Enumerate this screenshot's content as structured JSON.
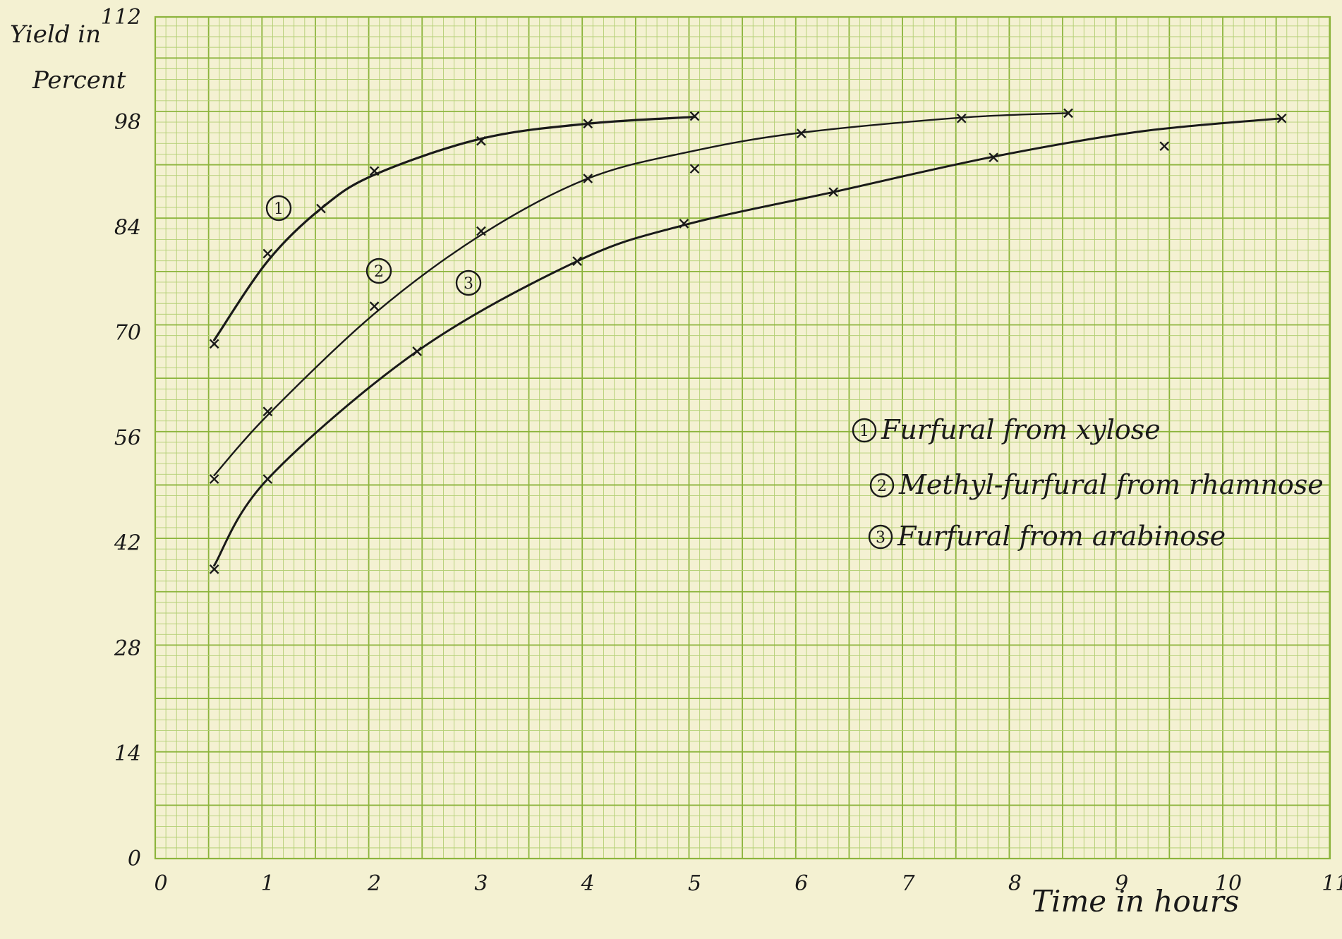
{
  "chart_data": {
    "type": "line",
    "title": "",
    "ylabel_line1": "Yield in",
    "ylabel_line2": "Percent",
    "xlabel": "Time in hours",
    "xlim": [
      0,
      11
    ],
    "ylim": [
      0,
      112
    ],
    "xticks": [
      "0",
      "1",
      "2",
      "3",
      "4",
      "5",
      "6",
      "7",
      "8",
      "9",
      "10",
      "11"
    ],
    "yticks": [
      "0",
      "14",
      "28",
      "42",
      "56",
      "70",
      "84",
      "98",
      "112"
    ],
    "grid": true,
    "legend_position": "right",
    "series": [
      {
        "marker_label": "1",
        "name": "Furfural from xylose",
        "points": [
          [
            0.5,
            68.5
          ],
          [
            1.0,
            80.5
          ],
          [
            1.5,
            86.5
          ],
          [
            2.0,
            91.5
          ],
          [
            3.0,
            95.5
          ],
          [
            4.0,
            97.8
          ],
          [
            5.0,
            98.8
          ]
        ],
        "curve": [
          [
            0.5,
            69
          ],
          [
            1.0,
            79.5
          ],
          [
            1.5,
            86.5
          ],
          [
            2.0,
            91
          ],
          [
            3.0,
            95.8
          ],
          [
            4.0,
            97.8
          ],
          [
            5.0,
            98.7
          ]
        ]
      },
      {
        "marker_label": "2",
        "name": "Methyl-furfural from rhamnose",
        "points": [
          [
            0.5,
            50.5
          ],
          [
            1.0,
            59.5
          ],
          [
            2.0,
            73.5
          ],
          [
            3.0,
            83.5
          ],
          [
            4.0,
            90.5
          ],
          [
            5.0,
            91.8
          ],
          [
            6.0,
            96.5
          ],
          [
            7.5,
            98.5
          ],
          [
            8.5,
            99.2
          ]
        ],
        "curve": [
          [
            0.5,
            51
          ],
          [
            1.0,
            59
          ],
          [
            2.0,
            72.5
          ],
          [
            3.0,
            83
          ],
          [
            4.0,
            90.5
          ],
          [
            5.0,
            94.2
          ],
          [
            6.0,
            96.6
          ],
          [
            7.5,
            98.6
          ],
          [
            8.5,
            99.2
          ]
        ]
      },
      {
        "marker_label": "3",
        "name": "Furfural from arabinose",
        "points": [
          [
            0.5,
            38.5
          ],
          [
            1.0,
            50.5
          ],
          [
            2.4,
            67.5
          ],
          [
            3.9,
            79.5
          ],
          [
            4.9,
            84.5
          ],
          [
            6.3,
            88.7
          ],
          [
            7.8,
            93.3
          ],
          [
            9.4,
            94.8
          ],
          [
            10.5,
            98.5
          ]
        ],
        "curve": [
          [
            0.5,
            39
          ],
          [
            1.0,
            50.5
          ],
          [
            2.4,
            67.5
          ],
          [
            3.9,
            79.5
          ],
          [
            4.9,
            84.3
          ],
          [
            6.3,
            88.7
          ],
          [
            7.8,
            93.4
          ],
          [
            9.2,
            96.8
          ],
          [
            10.5,
            98.5
          ]
        ]
      }
    ],
    "colors": {
      "paper": "#f4f1d2",
      "grid_minor": "#b3cf74",
      "grid_major": "#8cb43c",
      "ink": "#1a1a1a"
    }
  }
}
